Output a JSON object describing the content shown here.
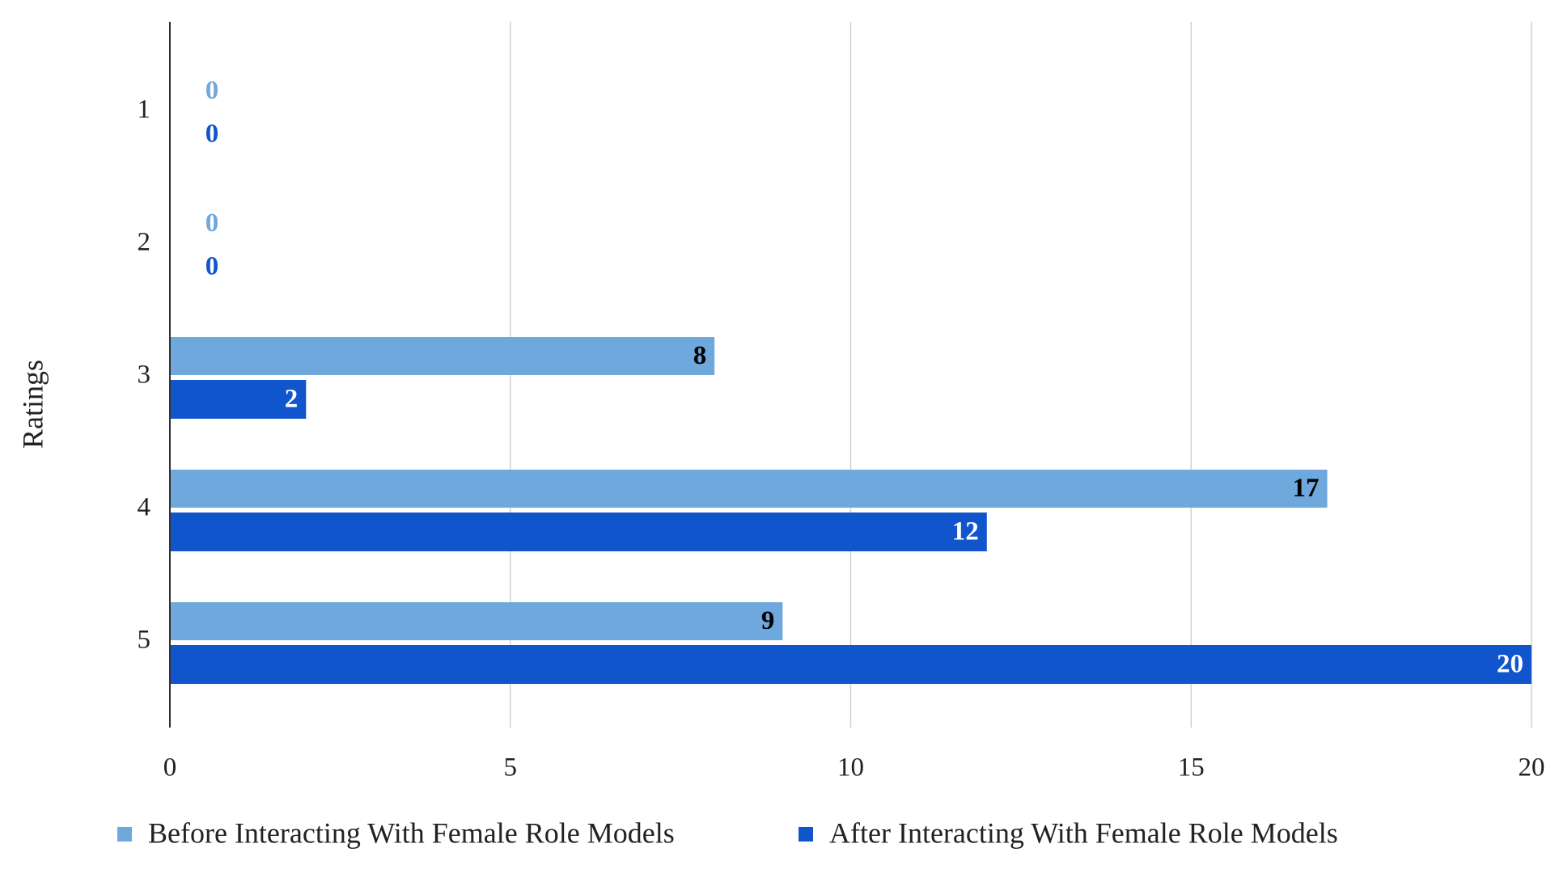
{
  "chart_data": {
    "type": "bar",
    "orientation": "horizontal",
    "y_label": "Ratings",
    "categories": [
      "1",
      "2",
      "3",
      "4",
      "5"
    ],
    "series": [
      {
        "name": "Before Interacting With Female Role Models",
        "color": "#6fa8dc",
        "label_color": "#000000",
        "values": [
          0,
          0,
          8,
          17,
          9
        ]
      },
      {
        "name": "After Interacting With Female Role Models",
        "color": "#1155cc",
        "label_color": "#ffffff",
        "values": [
          0,
          0,
          2,
          12,
          20
        ]
      }
    ],
    "xlim": [
      0,
      20
    ],
    "xticks": [
      0,
      5,
      10,
      15,
      20
    ],
    "grid": true,
    "legend": "bottom"
  }
}
